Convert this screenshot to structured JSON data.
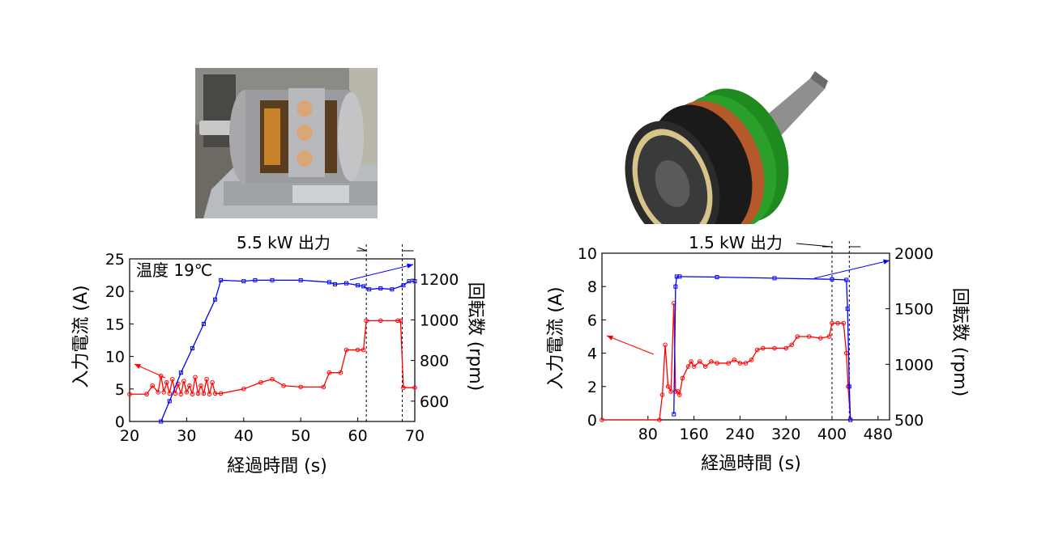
{
  "photos": {
    "left_alt": "motor-prototype-photo",
    "right_alt": "rotor-cad-render"
  },
  "chart_data": [
    {
      "type": "line",
      "annotation_text": "5.5 kW 出力",
      "inset_text": "温度 19℃",
      "xlabel": "経過時間 (s)",
      "ylabel_left": "入力電流 (A)",
      "ylabel_right": "回転数 (rpm)",
      "xlim": [
        20,
        70
      ],
      "ylim_left": [
        0,
        25
      ],
      "ylim_right": [
        500,
        1300
      ],
      "x_ticks": [
        "20",
        "30",
        "40",
        "50",
        "60",
        "70"
      ],
      "y_ticks_left": [
        "0",
        "5",
        "10",
        "15",
        "20",
        "25"
      ],
      "y_ticks_right": [
        "600",
        "800",
        "1000",
        "1200"
      ],
      "grid": false,
      "vlines": [
        61.5,
        67.8
      ],
      "series": [
        {
          "axis": "left",
          "color": "#ff0000",
          "marker": "circle",
          "x": [
            20,
            23,
            24,
            25,
            25.5,
            26,
            26.5,
            27,
            27.5,
            28,
            28.5,
            29,
            29.5,
            30,
            30.5,
            31,
            31.5,
            32,
            32.5,
            33,
            33.5,
            34,
            34.5,
            35,
            36,
            40,
            43,
            45,
            47,
            50,
            54,
            55,
            57,
            58,
            60,
            61,
            61.5,
            64,
            67,
            67.5,
            68,
            70
          ],
          "y": [
            4.2,
            4.2,
            5.5,
            4.5,
            7,
            4.5,
            6,
            4.3,
            6.5,
            4.3,
            5.8,
            4.2,
            6.2,
            4.5,
            5.5,
            4.2,
            6.8,
            4.3,
            5.5,
            4.3,
            6.5,
            4.2,
            6,
            4.3,
            4.3,
            5,
            6,
            6.5,
            5.5,
            5.3,
            5.3,
            7.5,
            7.5,
            11,
            11,
            11,
            15.5,
            15.5,
            15.5,
            15.5,
            5.2,
            5.2
          ]
        },
        {
          "axis": "right",
          "color": "#0000ff",
          "marker": "square",
          "x": [
            25.5,
            27,
            29,
            31,
            33,
            35,
            36,
            40,
            42,
            45,
            50,
            55,
            56,
            58,
            60,
            61,
            62,
            64,
            66,
            68,
            69,
            70
          ],
          "y": [
            500,
            600,
            740,
            860,
            980,
            1100,
            1195,
            1190,
            1195,
            1195,
            1195,
            1185,
            1175,
            1180,
            1170,
            1165,
            1150,
            1155,
            1150,
            1170,
            1190,
            1190
          ]
        }
      ]
    },
    {
      "type": "line",
      "annotation_text": "1.5 kW 出力",
      "xlabel": "経過時間 (s)",
      "ylabel_left": "入力電流 (A)",
      "ylabel_right": "回転数 (rpm)",
      "xlim": [
        0,
        500
      ],
      "ylim_left": [
        0,
        10
      ],
      "ylim_right": [
        500,
        2000
      ],
      "x_ticks": [
        "80",
        "160",
        "240",
        "320",
        "400",
        "480"
      ],
      "y_ticks_left": [
        "0",
        "2",
        "4",
        "6",
        "8",
        "10"
      ],
      "y_ticks_right": [
        "500",
        "1000",
        "1500",
        "2000"
      ],
      "grid": false,
      "vlines": [
        400,
        430
      ],
      "series": [
        {
          "axis": "left",
          "color": "#ff0000",
          "marker": "circle",
          "x": [
            0,
            100,
            105,
            110,
            115,
            120,
            125,
            128,
            132,
            135,
            140,
            150,
            155,
            160,
            170,
            180,
            190,
            200,
            220,
            230,
            240,
            250,
            260,
            270,
            280,
            300,
            320,
            330,
            340,
            360,
            380,
            395,
            400,
            410,
            420,
            425,
            428,
            432
          ],
          "y": [
            0,
            0,
            1.5,
            4.5,
            2,
            1.7,
            7,
            1.7,
            1.7,
            1.5,
            2.5,
            3.2,
            3.5,
            3.2,
            3.5,
            3.2,
            3.5,
            3.4,
            3.4,
            3.6,
            3.4,
            3.4,
            3.6,
            4.2,
            4.3,
            4.3,
            4.3,
            4.5,
            5,
            5,
            4.9,
            5,
            5.8,
            5.8,
            5.8,
            4,
            2,
            0
          ]
        },
        {
          "axis": "right",
          "color": "#0000ff",
          "marker": "square",
          "x": [
            125,
            128,
            130,
            135,
            200,
            300,
            400,
            425,
            427,
            430,
            432
          ],
          "y": [
            550,
            1700,
            1790,
            1790,
            1785,
            1775,
            1765,
            1760,
            1500,
            800,
            500
          ]
        }
      ]
    }
  ]
}
